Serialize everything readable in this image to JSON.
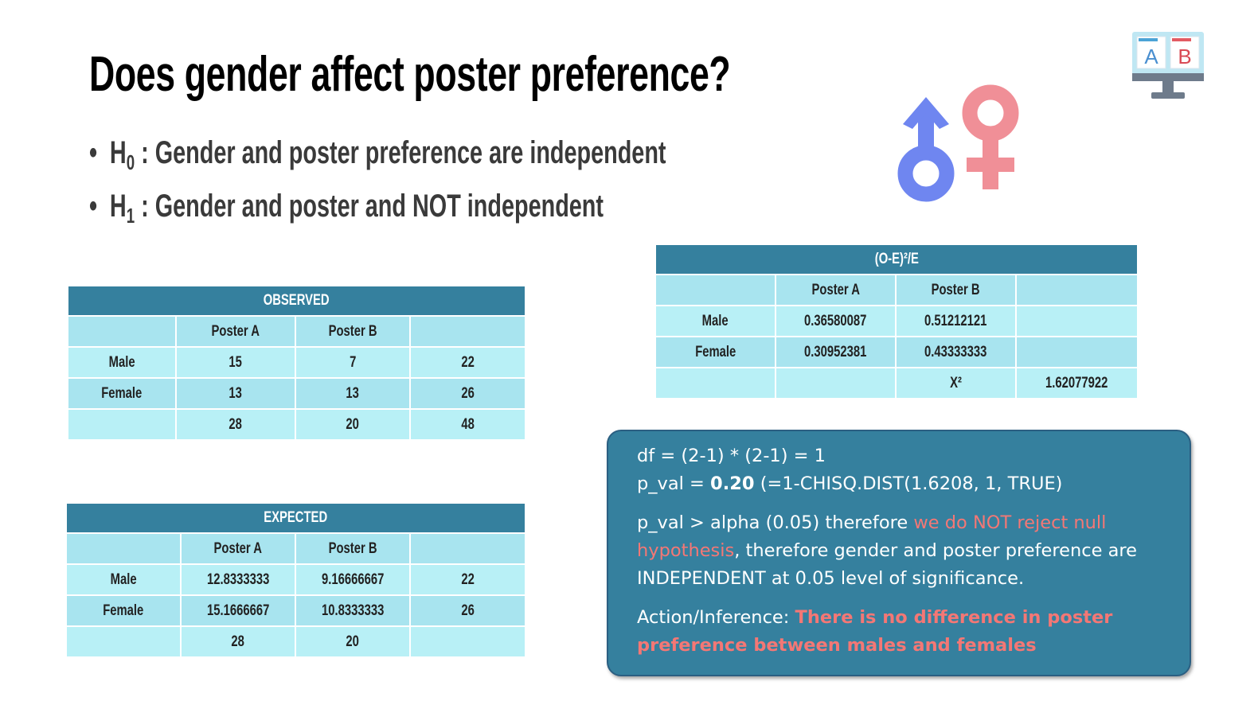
{
  "title": "Does gender affect poster preference?",
  "hypotheses": [
    {
      "symbol": "H",
      "sub": "0",
      "text": ": Gender and poster preference are independent"
    },
    {
      "symbol": "H",
      "sub": "1",
      "text": ": Gender and poster and NOT independent"
    }
  ],
  "observed": {
    "title": "OBSERVED",
    "header": [
      "",
      "Poster A",
      "Poster B",
      ""
    ],
    "rows": [
      [
        "Male",
        "15",
        "7",
        "22"
      ],
      [
        "Female",
        "13",
        "13",
        "26"
      ],
      [
        "",
        "28",
        "20",
        "48"
      ]
    ]
  },
  "expected": {
    "title": "EXPECTED",
    "header": [
      "",
      "Poster A",
      "Poster B",
      ""
    ],
    "rows": [
      [
        "Male",
        "12.8333333",
        "9.16666667",
        "22"
      ],
      [
        "Female",
        "15.1666667",
        "10.8333333",
        "26"
      ],
      [
        "",
        "28",
        "20",
        ""
      ]
    ]
  },
  "chisq_table": {
    "title": "(O-E)²/E",
    "header": [
      "",
      "Poster A",
      "Poster B",
      ""
    ],
    "rows": [
      [
        "Male",
        "0.36580087",
        "0.51212121",
        ""
      ],
      [
        "Female",
        "0.30952381",
        "0.43333333",
        ""
      ],
      [
        "",
        "",
        "X²",
        "1.62077922"
      ]
    ]
  },
  "results": {
    "df_line": "df = (2-1) * (2-1) = 1",
    "pval_prefix": "p_val = ",
    "pval_value": "0.20",
    "pval_suffix": " (=1-CHISQ.DIST(1.6208, 1, TRUE)",
    "conclusion_prefix": "p_val > alpha (0.05) therefore ",
    "conclusion_highlight": "we do NOT reject null hypothesis",
    "conclusion_suffix": ", therefore gender and poster preference are INDEPENDENT at 0.05 level of significance.",
    "action_prefix": "Action/Inference: ",
    "action_highlight": "There is no difference in poster preference between males and females"
  },
  "ab_icon": {
    "a": "A",
    "b": "B"
  },
  "colors": {
    "header_teal": "#35809e",
    "row_alt": "#a8e4ef",
    "row_light": "#b8f0f6",
    "highlight_red": "#f47775",
    "male_blue": "#6f86f0",
    "female_pink": "#f08f97"
  }
}
